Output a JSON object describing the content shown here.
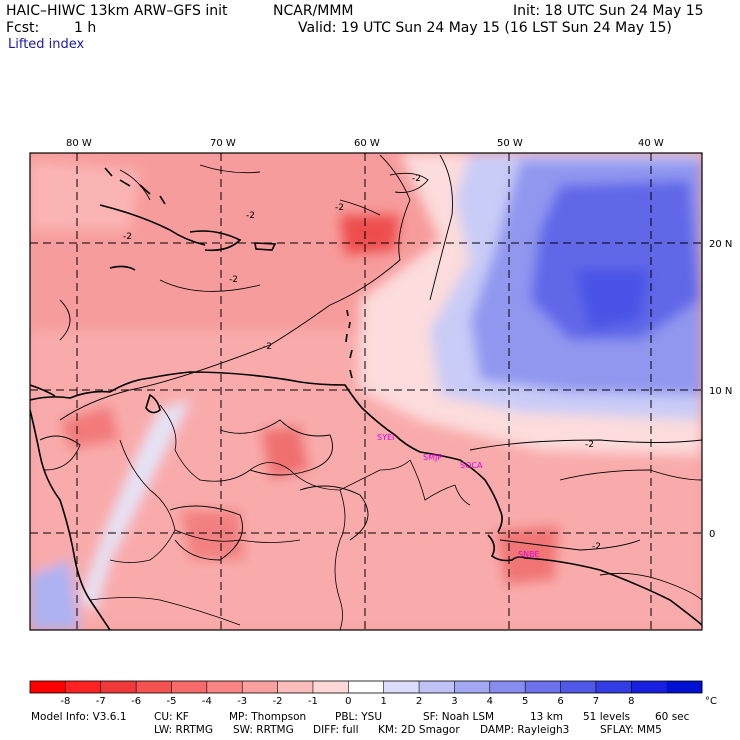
{
  "header": {
    "model_title": "HAIC–HIWC 13km ARW–GFS init",
    "org": "NCAR/MMM",
    "init": "Init: 18 UTC Sun 24 May 15",
    "fcst_label": "Fcst:",
    "fcst_value": "1 h",
    "valid": "Valid: 19 UTC Sun 24 May 15 (16 LST Sun 24 May 15)",
    "field": "Lifted index"
  },
  "map": {
    "lon_labels": [
      "80 W",
      "70 W",
      "60 W",
      "50 W",
      "40 W"
    ],
    "lat_labels": [
      "20 N",
      "10 N",
      "0"
    ],
    "contour_label": "-2",
    "stations": [
      "SYEI",
      "SMJP",
      "SOCA",
      "SNBE"
    ],
    "colors": {
      "warm_dark": "#ee2a2a",
      "warm_mid": "#f57373",
      "warm_light": "#fbbaba",
      "neutral": "#fde8e8",
      "cool_light": "#c8ccf8",
      "cool_mid": "#8088ee",
      "cool_dark": "#4a52e6"
    }
  },
  "colorbar": {
    "ticks": [
      "-8",
      "-7",
      "-6",
      "-5",
      "-4",
      "-3",
      "-2",
      "-1",
      "0",
      "1",
      "2",
      "3",
      "4",
      "5",
      "6",
      "7",
      "8"
    ],
    "unit": "°C",
    "colors": [
      "#ff0000",
      "#ff2222",
      "#f03a3a",
      "#f55252",
      "#f76a6a",
      "#f88484",
      "#f9a0a0",
      "#fbbcbc",
      "#fdd8d8",
      "#ffffff",
      "#dcdcfa",
      "#c0c2f6",
      "#a4a8f2",
      "#888df0",
      "#6c72ec",
      "#5058e8",
      "#343ce4",
      "#1820e0",
      "#0010d0"
    ]
  },
  "footer": {
    "line1": [
      "Model Info: V3.6.1",
      "CU: KF",
      "MP: Thompson",
      "PBL: YSU",
      "SF: Noah LSM",
      "13 km",
      "51 levels",
      "60 sec"
    ],
    "line2": [
      "LW: RRTMG",
      "SW: RRTMG",
      "DIFF: full",
      "KM: 2D Smagor",
      "DAMP: Rayleigh3",
      "SFLAY: MM5"
    ]
  }
}
